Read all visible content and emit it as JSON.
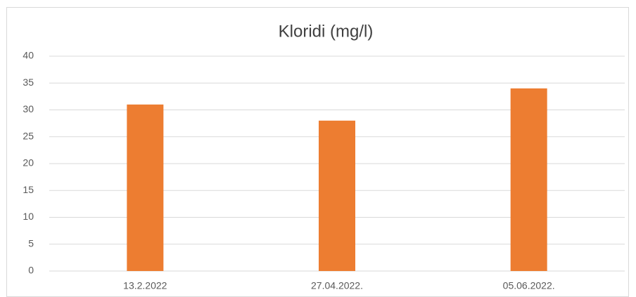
{
  "chart_data": {
    "type": "bar",
    "title": "Kloridi (mg/l)",
    "categories": [
      "13.2.2022",
      "27.04.2022.",
      "05.06.2022."
    ],
    "values": [
      31,
      28,
      34
    ],
    "color": "#ed7d31",
    "ylim": [
      0,
      40
    ],
    "yticks": [
      0,
      5,
      10,
      15,
      20,
      25,
      30,
      35,
      40
    ],
    "grid": true
  }
}
